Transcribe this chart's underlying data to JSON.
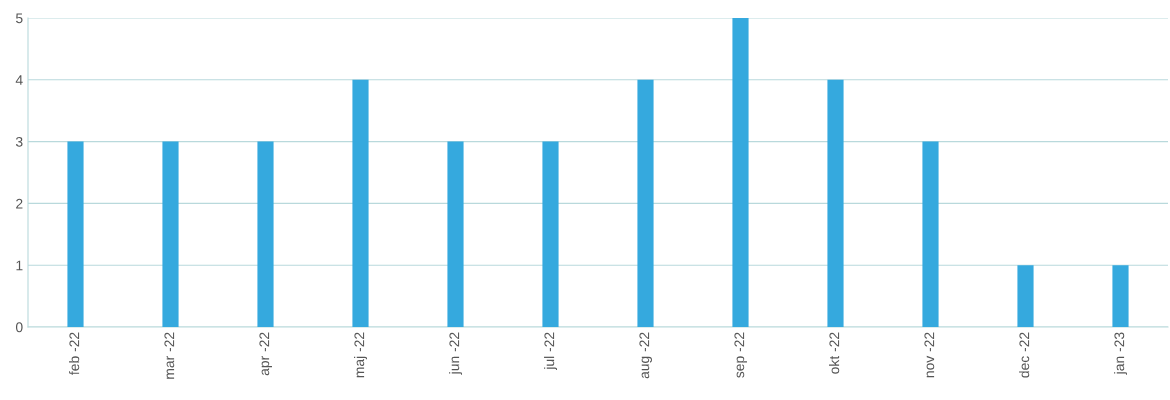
{
  "chart_data": {
    "type": "bar",
    "categories": [
      "feb -22",
      "mar -22",
      "apr -22",
      "maj -22",
      "jun -22",
      "jul -22",
      "aug -22",
      "sep -22",
      "okt -22",
      "nov -22",
      "dec -22",
      "jan -23"
    ],
    "values": [
      3,
      3,
      3,
      4,
      3,
      3,
      4,
      5,
      4,
      3,
      1,
      1
    ],
    "color": "#35a9de",
    "ylim": [
      0,
      5
    ],
    "yticks": [
      0,
      1,
      2,
      3,
      4,
      5
    ],
    "grid": "y"
  }
}
